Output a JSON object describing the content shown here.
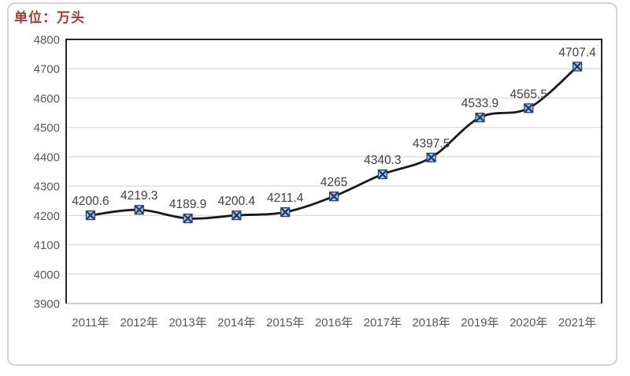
{
  "unit_label": "单位：万头",
  "colors": {
    "unit_text": "#9b3d34",
    "line": "#1a1a1a",
    "marker_fill": "#9dc3e6",
    "marker_stroke": "#1f3864",
    "gridline": "#d9d9d9",
    "axis_line": "#bfbfbf",
    "plot_border": "#262626",
    "data_label_text": "#404040",
    "axis_text": "#595959",
    "frame_border": "#d4d4d4"
  },
  "chart_data": {
    "type": "line",
    "smooth": true,
    "grid": true,
    "marker": "x-in-square",
    "title": "",
    "xlabel": "",
    "ylabel": "单位：万头",
    "categories": [
      "2011年",
      "2012年",
      "2013年",
      "2014年",
      "2015年",
      "2016年",
      "2017年",
      "2018年",
      "2019年",
      "2020年",
      "2021年"
    ],
    "values": [
      4200.6,
      4219.3,
      4189.9,
      4200.4,
      4211.4,
      4265,
      4340.3,
      4397.5,
      4533.9,
      4565.5,
      4707.4
    ],
    "data_labels": [
      "4200.6",
      "4219.3",
      "4189.9",
      "4200.4",
      "4211.4",
      "4265",
      "4340.3",
      "4397.5",
      "4533.9",
      "4565.5",
      "4707.4"
    ],
    "ylim": [
      3900,
      4800
    ],
    "y_ticks": [
      3900,
      4000,
      4100,
      4200,
      4300,
      4400,
      4500,
      4600,
      4700,
      4800
    ],
    "legend": "none"
  }
}
